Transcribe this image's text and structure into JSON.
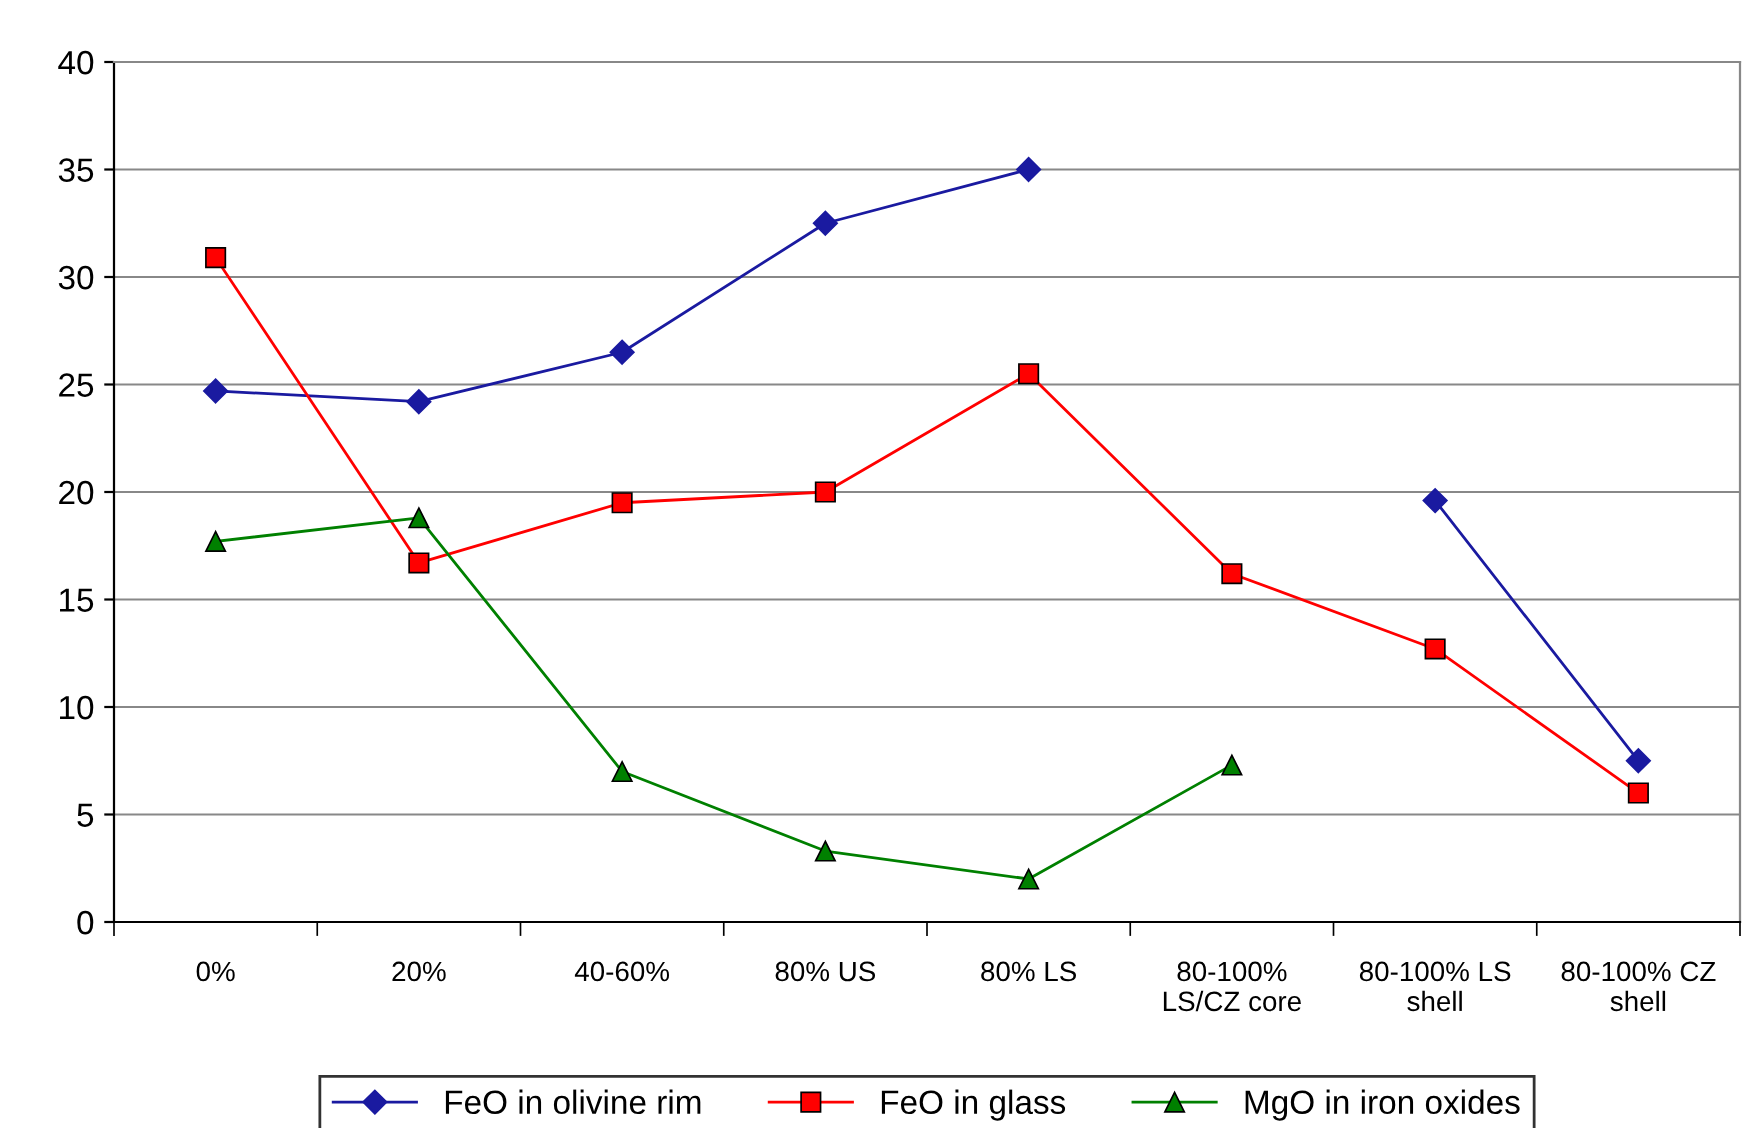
{
  "chart_data": {
    "type": "line",
    "categories": [
      "0%",
      "20%",
      "40-60%",
      "80% US",
      "80% LS",
      "80-100%\nLS/CZ core",
      "80-100% LS\nshell",
      "80-100% CZ\nshell"
    ],
    "series": [
      {
        "name": "FeO in olivine rim",
        "color": "#1a1aa0",
        "marker": "diamond",
        "values": [
          24.7,
          24.2,
          26.5,
          32.5,
          35.0,
          null,
          19.6,
          7.5
        ]
      },
      {
        "name": "FeO in glass",
        "color": "#ff0000",
        "marker": "square",
        "values": [
          30.9,
          16.7,
          19.5,
          20.0,
          25.5,
          16.2,
          12.7,
          6.0
        ]
      },
      {
        "name": "MgO in iron oxides",
        "color": "#008000",
        "marker": "triangle",
        "values": [
          17.7,
          18.8,
          7.0,
          3.3,
          2.0,
          7.3,
          null,
          null
        ]
      }
    ],
    "ylim": [
      0,
      40
    ],
    "yticks": [
      0,
      5,
      10,
      15,
      20,
      25,
      30,
      35,
      40
    ],
    "grid": "y",
    "legend": "bottom",
    "line_style": "solid"
  }
}
